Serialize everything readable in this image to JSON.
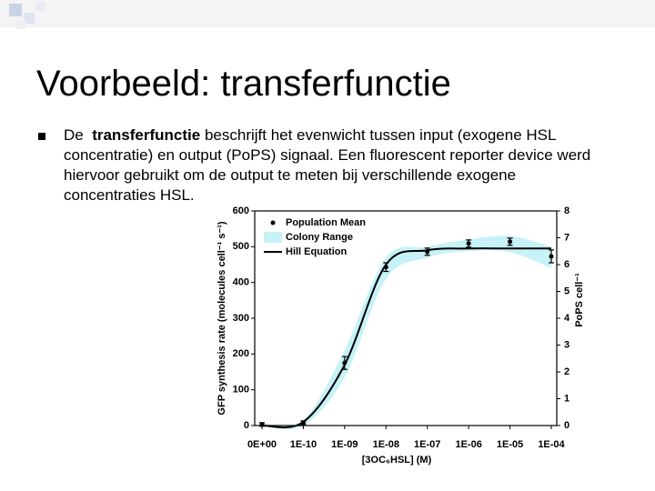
{
  "title": "Voorbeeld: transferfunctie",
  "bullet": {
    "lead": "De",
    "bold": "transferfunctie",
    "rest": "beschrijft het evenwicht tussen input (exogene HSL concentratie) en output (PoPS) signaal. Een fluorescent reporter device werd hiervoor gebruikt om de output te meten bij verschillende exogene concentraties HSL."
  },
  "chart_data": {
    "type": "line",
    "categories": [
      "0E+00",
      "1E-10",
      "1E-09",
      "1E-08",
      "1E-07",
      "1E-06",
      "1E-05",
      "1E-04"
    ],
    "series": [
      {
        "name": "Population Mean",
        "color": "#000000",
        "values": [
          3,
          8,
          175,
          443,
          486,
          509,
          514,
          473
        ],
        "errors": [
          5,
          5,
          18,
          12,
          10,
          10,
          10,
          18
        ]
      },
      {
        "name": "Colony Range",
        "color": "#c6f2f8",
        "lower": [
          0,
          0,
          135,
          410,
          470,
          488,
          485,
          440
        ],
        "upper": [
          6,
          15,
          211,
          470,
          500,
          520,
          530,
          500
        ]
      },
      {
        "name": "Hill Equation",
        "color": "#000000",
        "values": [
          0,
          10,
          170,
          450,
          490,
          495,
          495,
          495
        ]
      }
    ],
    "xlabel": "[3OC₆HSL] (M)",
    "ylabel": "GFP synthesis rate (molecules cell⁻¹ s⁻¹)",
    "y2label": "PoPS cell⁻¹",
    "ylim": [
      0,
      600
    ],
    "yticks": [
      0,
      100,
      200,
      300,
      400,
      500,
      600
    ],
    "y2lim": [
      0,
      8
    ],
    "y2ticks": [
      0,
      1,
      2,
      3,
      4,
      5,
      6,
      7,
      8
    ]
  }
}
